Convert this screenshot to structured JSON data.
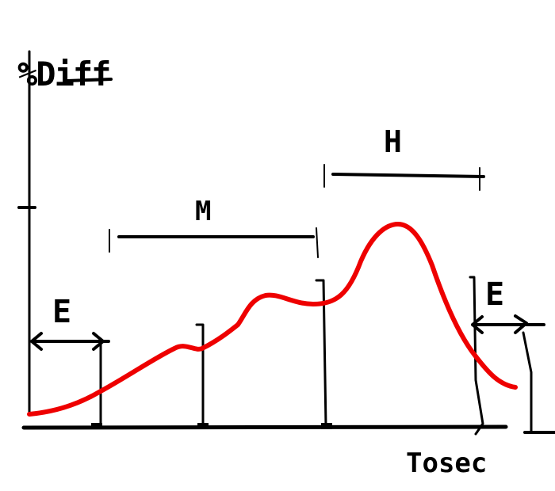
{
  "labels": {
    "y_axis": "%Diff",
    "x_axis": "Tosec",
    "e_left": "E",
    "m": "M",
    "h": "H",
    "e_right": "E"
  },
  "colors": {
    "ink": "#000000",
    "curve": "#ee0000",
    "background": "#ffffff"
  }
}
